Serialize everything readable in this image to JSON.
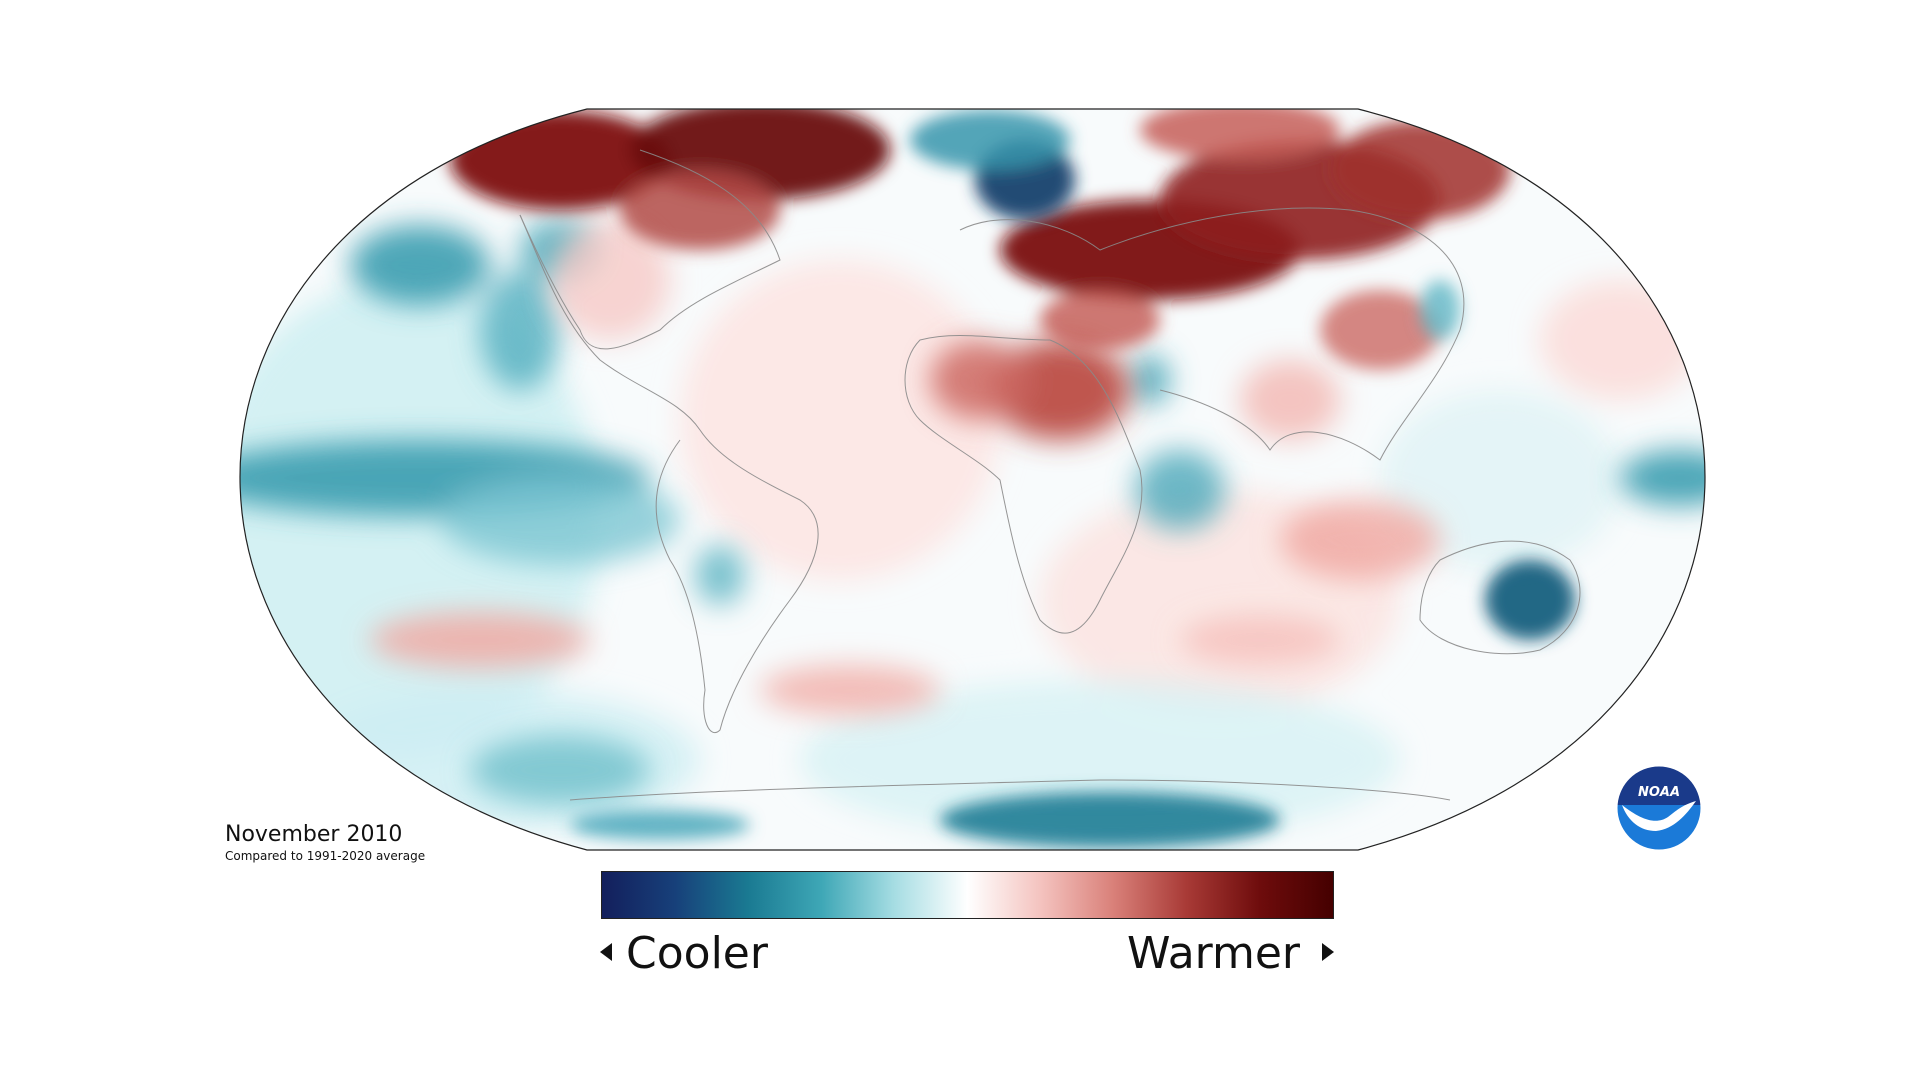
{
  "caption": {
    "title": "November 2010",
    "subtitle": "Compared to 1991-2020 average"
  },
  "legend": {
    "cooler_label": "Cooler",
    "warmer_label": "Warmer",
    "colors": [
      "#131f5c",
      "#17407a",
      "#1a7a92",
      "#3ea7b6",
      "#a6dde3",
      "#ffffff",
      "#f4c3bf",
      "#d98079",
      "#a83a36",
      "#6e0c0c",
      "#450000"
    ]
  },
  "logo": {
    "text": "NOAA",
    "icon": "noaa-logo-icon",
    "colors": {
      "top": "#1a3a8a",
      "bottom": "#1b7ad8",
      "bird": "#ffffff"
    }
  },
  "map": {
    "projection": "robinson",
    "anomaly_colors": {
      "very_warm": "#6e0c0c",
      "warm": "#c0504a",
      "mild_warm": "#f3c6c2",
      "neutral": "#ffffff",
      "mild_cool": "#c9eef2",
      "cool": "#3ea0b2",
      "very_cool": "#1a5f8a"
    }
  }
}
